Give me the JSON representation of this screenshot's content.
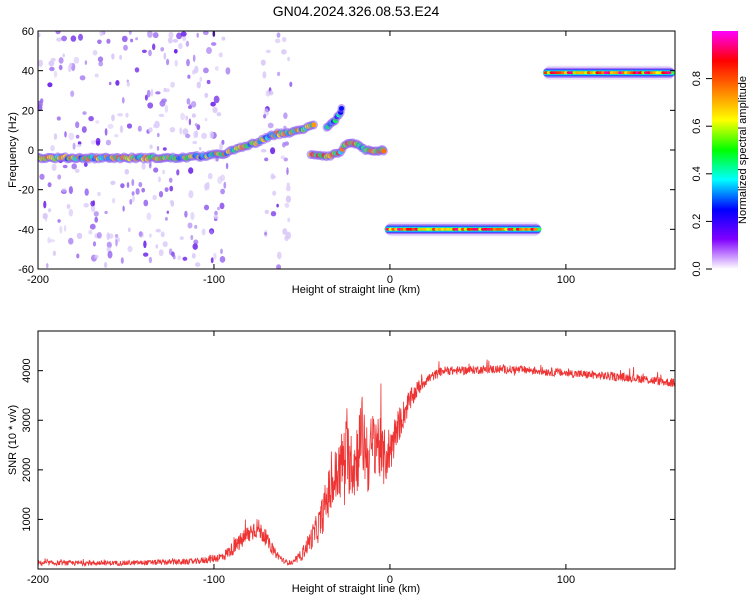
{
  "chart_data": [
    {
      "type": "heatmap",
      "title": "GN04.2024.326.08.53.E24",
      "xlabel": "Height of straight line (km)",
      "ylabel": "Frequency (Hz)",
      "xlim": [
        -200,
        162
      ],
      "ylim": [
        -60,
        60
      ],
      "xticks": [
        -200,
        -100,
        0,
        100
      ],
      "yticks": [
        -60,
        -40,
        -20,
        0,
        20,
        40,
        60
      ],
      "colorbar": {
        "label": "Normalized spectral amplitude",
        "range": [
          0,
          1
        ],
        "ticks": [
          0.0,
          0.2,
          0.4,
          0.6,
          0.8
        ],
        "colors": [
          "#ffffff",
          "#8000ff",
          "#0000ff",
          "#00ffff",
          "#00ff00",
          "#ffff00",
          "#ff8000",
          "#ff0000",
          "#ff00ff"
        ]
      },
      "features": [
        {
          "kind": "noise_band",
          "x": [
            -200,
            -92
          ],
          "y": [
            -60,
            60
          ],
          "amplitude": 0.1
        },
        {
          "kind": "noise_band",
          "x": [
            -72,
            -56
          ],
          "y": [
            -60,
            60
          ],
          "amplitude": 0.08
        },
        {
          "kind": "track",
          "points": [
            [
              -200,
              -4
            ],
            [
              -180,
              -4
            ],
            [
              -160,
              -4
            ],
            [
              -140,
              -4
            ],
            [
              -120,
              -4
            ],
            [
              -105,
              -3
            ],
            [
              -95,
              -2
            ],
            [
              -85,
              1
            ],
            [
              -75,
              4
            ],
            [
              -65,
              8
            ],
            [
              -55,
              9
            ],
            [
              -48,
              11
            ],
            [
              -42,
              13
            ]
          ],
          "amplitude": 0.55
        },
        {
          "kind": "track",
          "points": [
            [
              -45,
              -2
            ],
            [
              -35,
              -3
            ],
            [
              -28,
              -1
            ],
            [
              -25,
              3
            ],
            [
              -22,
              4
            ],
            [
              -18,
              2
            ],
            [
              -14,
              0
            ],
            [
              -10,
              -1
            ],
            [
              -7,
              -1
            ],
            [
              -4,
              0
            ],
            [
              -3,
              0
            ]
          ],
          "amplitude": 0.6
        },
        {
          "kind": "track",
          "points": [
            [
              -36,
              11
            ],
            [
              -32,
              14
            ],
            [
              -28,
              19
            ],
            [
              -27,
              22
            ]
          ],
          "amplitude": 0.4
        },
        {
          "kind": "line",
          "x": [
            -3,
            86
          ],
          "y": -40,
          "amplitude": 0.85
        },
        {
          "kind": "line",
          "x": [
            87,
            162
          ],
          "y": 39,
          "amplitude": 0.85
        }
      ]
    },
    {
      "type": "line",
      "xlabel": "Height of straight line (km)",
      "ylabel": "SNR (10 * v/v)",
      "xlim": [
        -200,
        162
      ],
      "ylim": [
        0,
        4800
      ],
      "xticks": [
        -200,
        -100,
        0,
        100
      ],
      "yticks": [
        1000,
        2000,
        3000,
        4000
      ],
      "color": "#ee3333",
      "envelope": {
        "x": [
          -200,
          -150,
          -110,
          -95,
          -88,
          -82,
          -76,
          -72,
          -66,
          -60,
          -55,
          -50,
          -45,
          -40,
          -35,
          -30,
          -25,
          -20,
          -16,
          -12,
          -8,
          -4,
          0,
          5,
          10,
          15,
          20,
          25,
          30,
          35,
          40,
          50,
          60,
          80,
          100,
          120,
          140,
          150,
          162
        ],
        "center": [
          120,
          120,
          150,
          250,
          450,
          650,
          850,
          700,
          350,
          150,
          120,
          300,
          600,
          900,
          1500,
          1900,
          2300,
          2100,
          2700,
          2200,
          2700,
          2200,
          2400,
          2900,
          3300,
          3600,
          3800,
          3900,
          4000,
          4000,
          4000,
          4020,
          4030,
          4010,
          3950,
          3900,
          3850,
          3800,
          3750
        ],
        "spread": [
          100,
          100,
          120,
          200,
          300,
          400,
          450,
          350,
          200,
          100,
          100,
          250,
          450,
          700,
          1000,
          1300,
          1500,
          1500,
          1700,
          1500,
          1500,
          1200,
          1000,
          700,
          500,
          350,
          250,
          200,
          180,
          180,
          170,
          170,
          170,
          170,
          170,
          170,
          180,
          180,
          180
        ]
      }
    }
  ]
}
